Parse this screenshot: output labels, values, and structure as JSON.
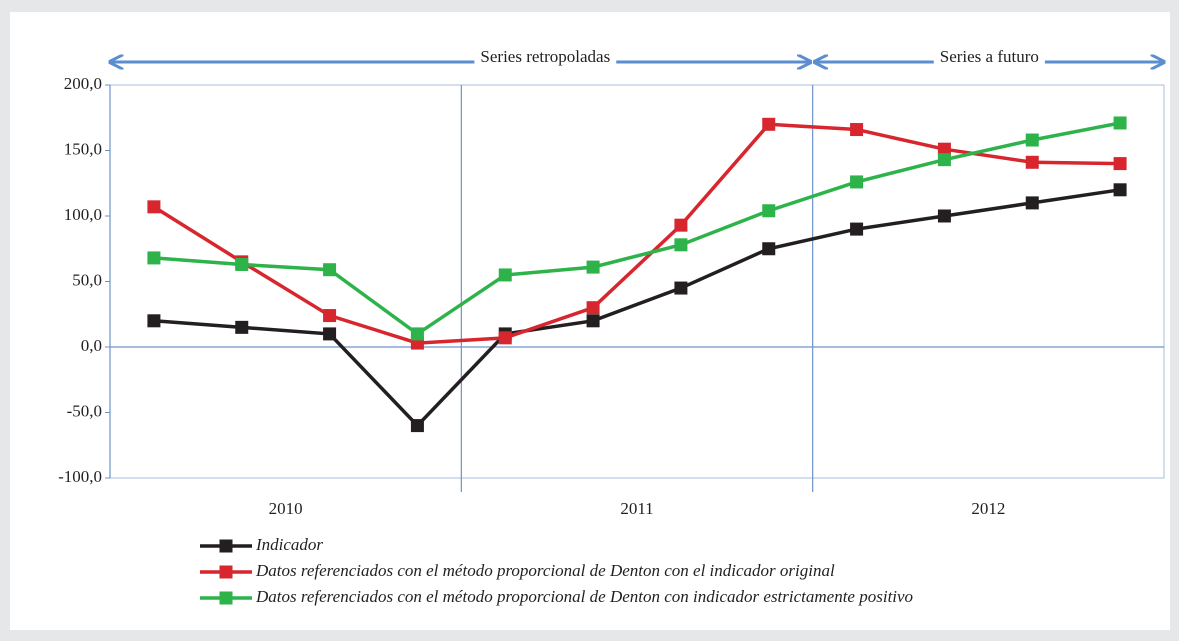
{
  "chart_data": {
    "type": "line",
    "categories": [
      null,
      null,
      null,
      null,
      null,
      null,
      null,
      null,
      null,
      null,
      null,
      null
    ],
    "year_groups": [
      "2010",
      "2011",
      "2012"
    ],
    "annotations": [
      "Series retropoladas",
      "Series a futuro"
    ],
    "series": [
      {
        "name": "Indicador",
        "color": "#231f20",
        "values": [
          20,
          15,
          10,
          -60,
          10,
          20,
          45,
          75,
          90,
          100,
          110,
          120
        ]
      },
      {
        "name": "Datos referenciados con el método proporcional de Denton con el indicador original",
        "color": "#d7262e",
        "values": [
          107,
          65,
          24,
          3,
          7,
          30,
          93,
          170,
          166,
          151,
          141,
          140
        ]
      },
      {
        "name": "Datos referenciados con el método proporcional de Denton con indicador estrictamente positivo",
        "color": "#2db34a",
        "values": [
          68,
          63,
          59,
          10,
          55,
          61,
          78,
          104,
          126,
          143,
          158,
          171
        ]
      }
    ],
    "ylim": [
      -100,
      200
    ],
    "yticks": [
      {
        "value": -100,
        "label": "-100,0"
      },
      {
        "value": -50,
        "label": "-50,0"
      },
      {
        "value": 0,
        "label": "0,0"
      },
      {
        "value": 50,
        "label": "50,0"
      },
      {
        "value": 100,
        "label": "100,0"
      },
      {
        "value": 150,
        "label": "150,0"
      },
      {
        "value": 200,
        "label": "200,0"
      }
    ],
    "legend": "bottom"
  }
}
